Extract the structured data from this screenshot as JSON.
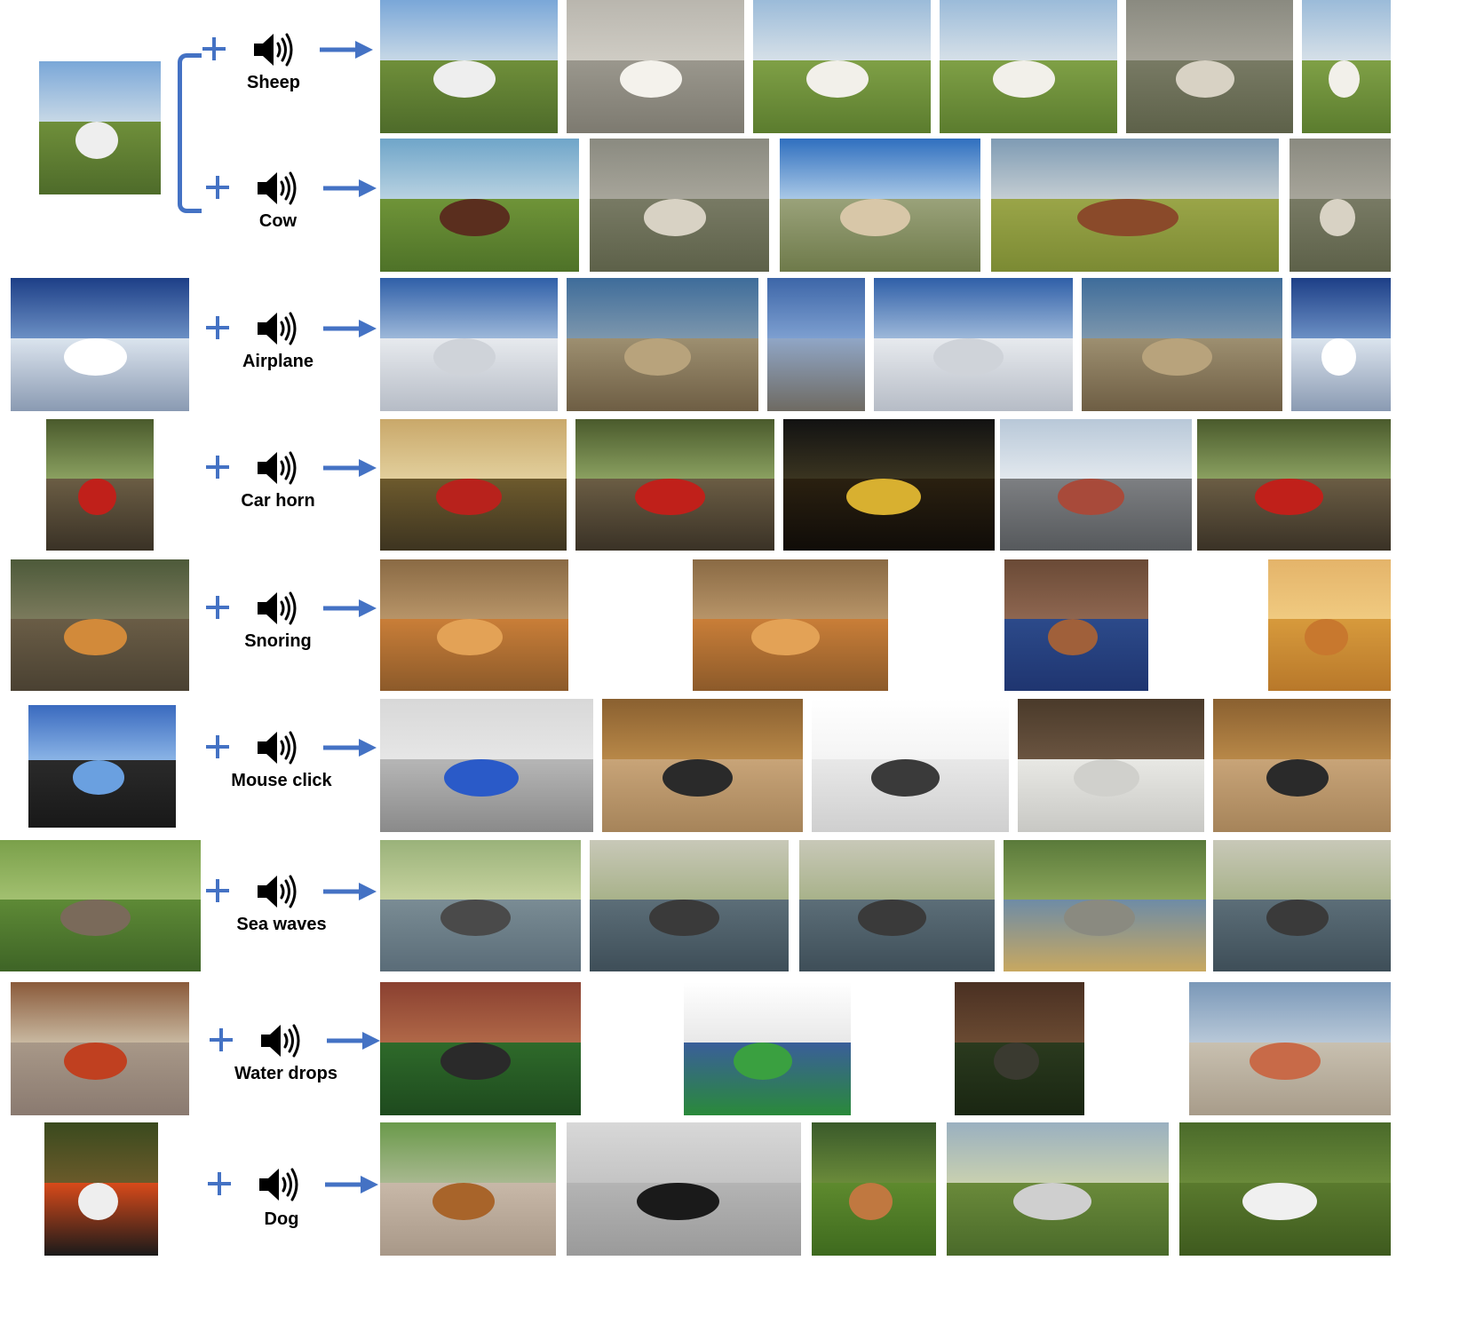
{
  "rows": [
    {
      "label": "Sheep"
    },
    {
      "label": "Cow"
    },
    {
      "label": "Airplane"
    },
    {
      "label": "Car horn"
    },
    {
      "label": "Snoring"
    },
    {
      "label": "Mouse click"
    },
    {
      "label": "Sea waves"
    },
    {
      "label": "Water drops"
    },
    {
      "label": "Dog"
    }
  ],
  "colors": {
    "accent": "#4472c4"
  }
}
